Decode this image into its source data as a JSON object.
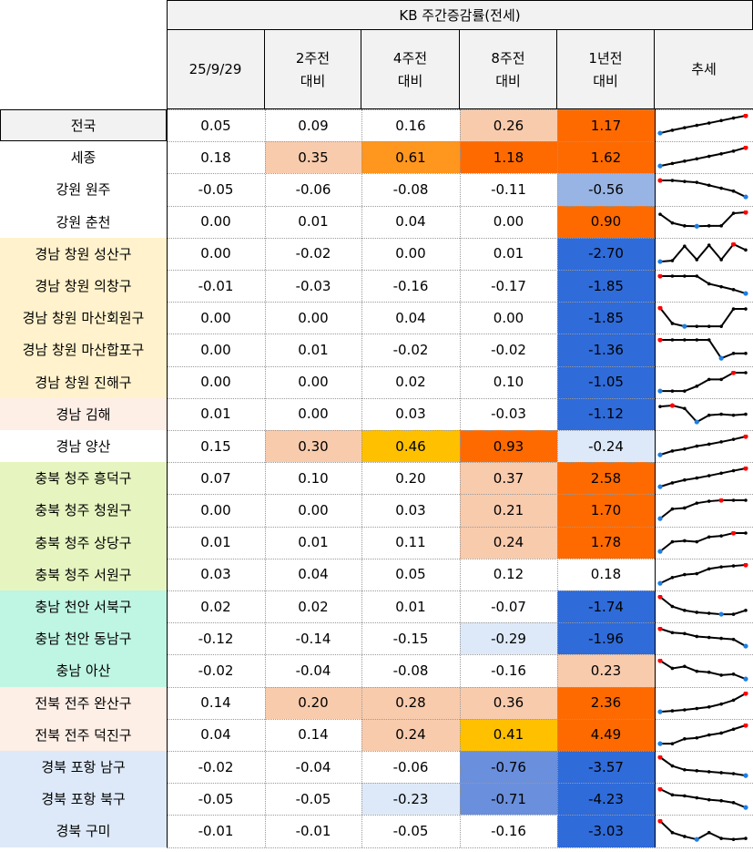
{
  "header": {
    "group_title": "KB 주간증감률(전세)",
    "columns": [
      {
        "line1": "25/9/29",
        "line2": ""
      },
      {
        "line1": "2주전",
        "line2": "대비"
      },
      {
        "line1": "4주전",
        "line2": "대비"
      },
      {
        "line1": "8주전",
        "line2": "대비"
      },
      {
        "line1": "1년전",
        "line2": "대비"
      },
      {
        "line1": "추세",
        "line2": ""
      }
    ]
  },
  "colors": {
    "header_bg": "#f2f2f2",
    "light_peach": "#f8cbad",
    "orange": "#ff961e",
    "deep_orange": "#ff6a00",
    "yellow_orange": "#ffc000",
    "deep_blue": "#2f6bd9",
    "mid_blue": "#6a8fdc",
    "light_blue": "#98b4e4",
    "pale_blue": "#dde9f8",
    "sparkline": "#000000",
    "spark_high": "#ff0000",
    "spark_low": "#1f7fe0"
  },
  "chart_data": {
    "type": "table",
    "columns": [
      "25/9/29",
      "2주전 대비",
      "4주전 대비",
      "8주전 대비",
      "1년전 대비",
      "추세"
    ],
    "rows": [
      {
        "region": "전국",
        "label_bg": "#f2f2f2",
        "values": [
          "0.05",
          "0.09",
          "0.16",
          "0.26",
          "1.17"
        ],
        "fills": [
          "",
          "",
          "",
          "#f8cbad",
          "#ff6a00"
        ],
        "trend": [
          0.1,
          0.25,
          0.38,
          0.5,
          0.62,
          0.75,
          0.88,
          1.0
        ]
      },
      {
        "region": "세종",
        "label_bg": "",
        "values": [
          "0.18",
          "0.35",
          "0.61",
          "1.18",
          "1.62"
        ],
        "fills": [
          "",
          "#f8cbad",
          "#ff961e",
          "#ff6a00",
          "#ff6a00"
        ],
        "trend": [
          0.05,
          0.18,
          0.3,
          0.42,
          0.55,
          0.68,
          0.82,
          1.0
        ]
      },
      {
        "region": "강원 원주",
        "label_bg": "",
        "values": [
          "-0.05",
          "-0.06",
          "-0.08",
          "-0.11",
          "-0.56"
        ],
        "fills": [
          "",
          "",
          "",
          "",
          "#98b4e4"
        ],
        "trend": [
          0.95,
          0.95,
          0.9,
          0.85,
          0.7,
          0.55,
          0.4,
          0.1
        ]
      },
      {
        "region": "강원 춘천",
        "label_bg": "",
        "values": [
          "0.00",
          "0.01",
          "0.04",
          "0.00",
          "0.90"
        ],
        "fills": [
          "",
          "",
          "",
          "",
          "#ff6a00"
        ],
        "trend": [
          0.9,
          0.45,
          0.3,
          0.28,
          0.3,
          0.3,
          0.95,
          1.0
        ]
      },
      {
        "region": "경남 창원 성산구",
        "label_bg": "#fff2cc",
        "values": [
          "0.00",
          "-0.02",
          "0.00",
          "0.01",
          "-2.70"
        ],
        "fills": [
          "",
          "",
          "",
          "",
          "#2f6bd9"
        ],
        "trend": [
          0.1,
          0.15,
          0.9,
          0.2,
          0.95,
          0.2,
          1.0,
          0.7
        ]
      },
      {
        "region": "경남 창원 의창구",
        "label_bg": "#fff2cc",
        "values": [
          "-0.01",
          "-0.03",
          "-0.16",
          "-0.17",
          "-1.85"
        ],
        "fills": [
          "",
          "",
          "",
          "",
          "#2f6bd9"
        ],
        "trend": [
          1.0,
          1.0,
          1.0,
          1.0,
          0.6,
          0.45,
          0.3,
          0.1
        ]
      },
      {
        "region": "경남 창원 마산회원구",
        "label_bg": "#fff2cc",
        "values": [
          "0.00",
          "0.00",
          "0.04",
          "0.00",
          "-1.85"
        ],
        "fills": [
          "",
          "",
          "",
          "",
          "#2f6bd9"
        ],
        "trend": [
          1.0,
          0.2,
          0.05,
          0.05,
          0.05,
          0.05,
          0.95,
          0.95
        ]
      },
      {
        "region": "경남 창원 마산합포구",
        "label_bg": "#fff2cc",
        "values": [
          "0.00",
          "0.01",
          "-0.02",
          "-0.02",
          "-1.36"
        ],
        "fills": [
          "",
          "",
          "",
          "",
          "#2f6bd9"
        ],
        "trend": [
          1.0,
          1.0,
          1.0,
          1.0,
          1.0,
          0.05,
          0.3,
          0.3
        ]
      },
      {
        "region": "경남 창원 진해구",
        "label_bg": "#fff2cc",
        "values": [
          "0.00",
          "0.00",
          "0.02",
          "0.10",
          "-1.05"
        ],
        "fills": [
          "",
          "",
          "",
          "",
          "#2f6bd9"
        ],
        "trend": [
          0.05,
          0.05,
          0.05,
          0.3,
          0.65,
          0.65,
          1.0,
          1.0
        ]
      },
      {
        "region": "경남 김해",
        "label_bg": "#fdeee6",
        "values": [
          "0.01",
          "0.00",
          "0.03",
          "-0.03",
          "-1.12"
        ],
        "fills": [
          "",
          "",
          "",
          "",
          "#2f6bd9"
        ],
        "trend": [
          0.9,
          0.95,
          0.8,
          0.1,
          0.45,
          0.5,
          0.45,
          0.5
        ]
      },
      {
        "region": "경남 양산",
        "label_bg": "",
        "values": [
          "0.15",
          "0.30",
          "0.46",
          "0.93",
          "-0.24"
        ],
        "fills": [
          "",
          "#f8cbad",
          "#ffc000",
          "#ff6a00",
          "#dde9f8"
        ],
        "trend": [
          0.05,
          0.25,
          0.35,
          0.5,
          0.6,
          0.72,
          0.85,
          1.0
        ]
      },
      {
        "region": "충북 청주 흥덕구",
        "label_bg": "#e6f5c0",
        "values": [
          "0.07",
          "0.10",
          "0.20",
          "0.37",
          "2.58"
        ],
        "fills": [
          "",
          "",
          "",
          "#f8cbad",
          "#ff6a00"
        ],
        "trend": [
          0.05,
          0.25,
          0.4,
          0.5,
          0.62,
          0.75,
          0.88,
          1.0
        ]
      },
      {
        "region": "충북 청주 청원구",
        "label_bg": "#e6f5c0",
        "values": [
          "0.00",
          "0.00",
          "0.03",
          "0.21",
          "1.70"
        ],
        "fills": [
          "",
          "",
          "",
          "#f8cbad",
          "#ff6a00"
        ],
        "trend": [
          0.05,
          0.55,
          0.6,
          0.85,
          0.95,
          1.0,
          1.0,
          1.0
        ]
      },
      {
        "region": "충북 청주 상당구",
        "label_bg": "#e6f5c0",
        "values": [
          "0.01",
          "0.01",
          "0.11",
          "0.24",
          "1.78"
        ],
        "fills": [
          "",
          "",
          "",
          "#f8cbad",
          "#ff6a00"
        ],
        "trend": [
          0.05,
          0.55,
          0.6,
          0.55,
          0.8,
          0.85,
          1.0,
          1.0
        ]
      },
      {
        "region": "충북 청주 서원구",
        "label_bg": "#e6f5c0",
        "values": [
          "0.03",
          "0.04",
          "0.05",
          "0.12",
          "0.18"
        ],
        "fills": [
          "",
          "",
          "",
          "",
          ""
        ],
        "trend": [
          0.05,
          0.35,
          0.5,
          0.55,
          0.8,
          0.9,
          0.95,
          1.0
        ]
      },
      {
        "region": "충남 천안 서북구",
        "label_bg": "#bff5e3",
        "values": [
          "0.02",
          "0.02",
          "0.01",
          "-0.07",
          "-1.74"
        ],
        "fills": [
          "",
          "",
          "",
          "",
          "#2f6bd9"
        ],
        "trend": [
          1.0,
          0.5,
          0.3,
          0.2,
          0.15,
          0.1,
          0.1,
          0.3
        ]
      },
      {
        "region": "충남 천안 동남구",
        "label_bg": "#bff5e3",
        "values": [
          "-0.12",
          "-0.14",
          "-0.15",
          "-0.29",
          "-1.96"
        ],
        "fills": [
          "",
          "",
          "",
          "#dde9f8",
          "#2f6bd9"
        ],
        "trend": [
          1.0,
          0.8,
          0.75,
          0.6,
          0.55,
          0.5,
          0.45,
          0.1
        ]
      },
      {
        "region": "충남 아산",
        "label_bg": "#bff5e3",
        "values": [
          "-0.02",
          "-0.04",
          "-0.08",
          "-0.16",
          "0.23"
        ],
        "fills": [
          "",
          "",
          "",
          "",
          "#f8cbad"
        ],
        "trend": [
          1.0,
          0.6,
          0.7,
          0.45,
          0.4,
          0.25,
          0.3,
          0.05
        ]
      },
      {
        "region": "전북 전주 완산구",
        "label_bg": "#fdeee6",
        "values": [
          "0.14",
          "0.20",
          "0.28",
          "0.36",
          "2.36"
        ],
        "fills": [
          "",
          "#f8cbad",
          "#f8cbad",
          "#f8cbad",
          "#ff6a00"
        ],
        "trend": [
          0.05,
          0.1,
          0.15,
          0.22,
          0.3,
          0.45,
          0.65,
          1.0
        ]
      },
      {
        "region": "전북 전주 덕진구",
        "label_bg": "#fdeee6",
        "values": [
          "0.04",
          "0.14",
          "0.24",
          "0.41",
          "4.49"
        ],
        "fills": [
          "",
          "",
          "#f8cbad",
          "#ffc000",
          "#ff6a00"
        ],
        "trend": [
          0.05,
          0.05,
          0.3,
          0.35,
          0.5,
          0.6,
          0.8,
          1.0
        ]
      },
      {
        "region": "경북 포항 남구",
        "label_bg": "#dde9f8",
        "values": [
          "-0.02",
          "-0.04",
          "-0.06",
          "-0.76",
          "-3.57"
        ],
        "fills": [
          "",
          "",
          "",
          "#6a8fdc",
          "#2f6bd9"
        ],
        "trend": [
          1.0,
          0.55,
          0.35,
          0.3,
          0.25,
          0.2,
          0.15,
          0.05
        ]
      },
      {
        "region": "경북 포항 북구",
        "label_bg": "#dde9f8",
        "values": [
          "-0.05",
          "-0.05",
          "-0.23",
          "-0.71",
          "-4.23"
        ],
        "fills": [
          "",
          "",
          "#dde9f8",
          "#6a8fdc",
          "#2f6bd9"
        ],
        "trend": [
          1.0,
          0.7,
          0.65,
          0.55,
          0.45,
          0.4,
          0.3,
          0.05
        ]
      },
      {
        "region": "경북 구미",
        "label_bg": "#dde9f8",
        "values": [
          "-0.01",
          "-0.01",
          "-0.05",
          "-0.16",
          "-3.03"
        ],
        "fills": [
          "",
          "",
          "",
          "",
          "#2f6bd9"
        ],
        "trend": [
          1.0,
          0.4,
          0.2,
          0.05,
          0.4,
          0.1,
          0.05,
          0.1
        ]
      }
    ]
  }
}
